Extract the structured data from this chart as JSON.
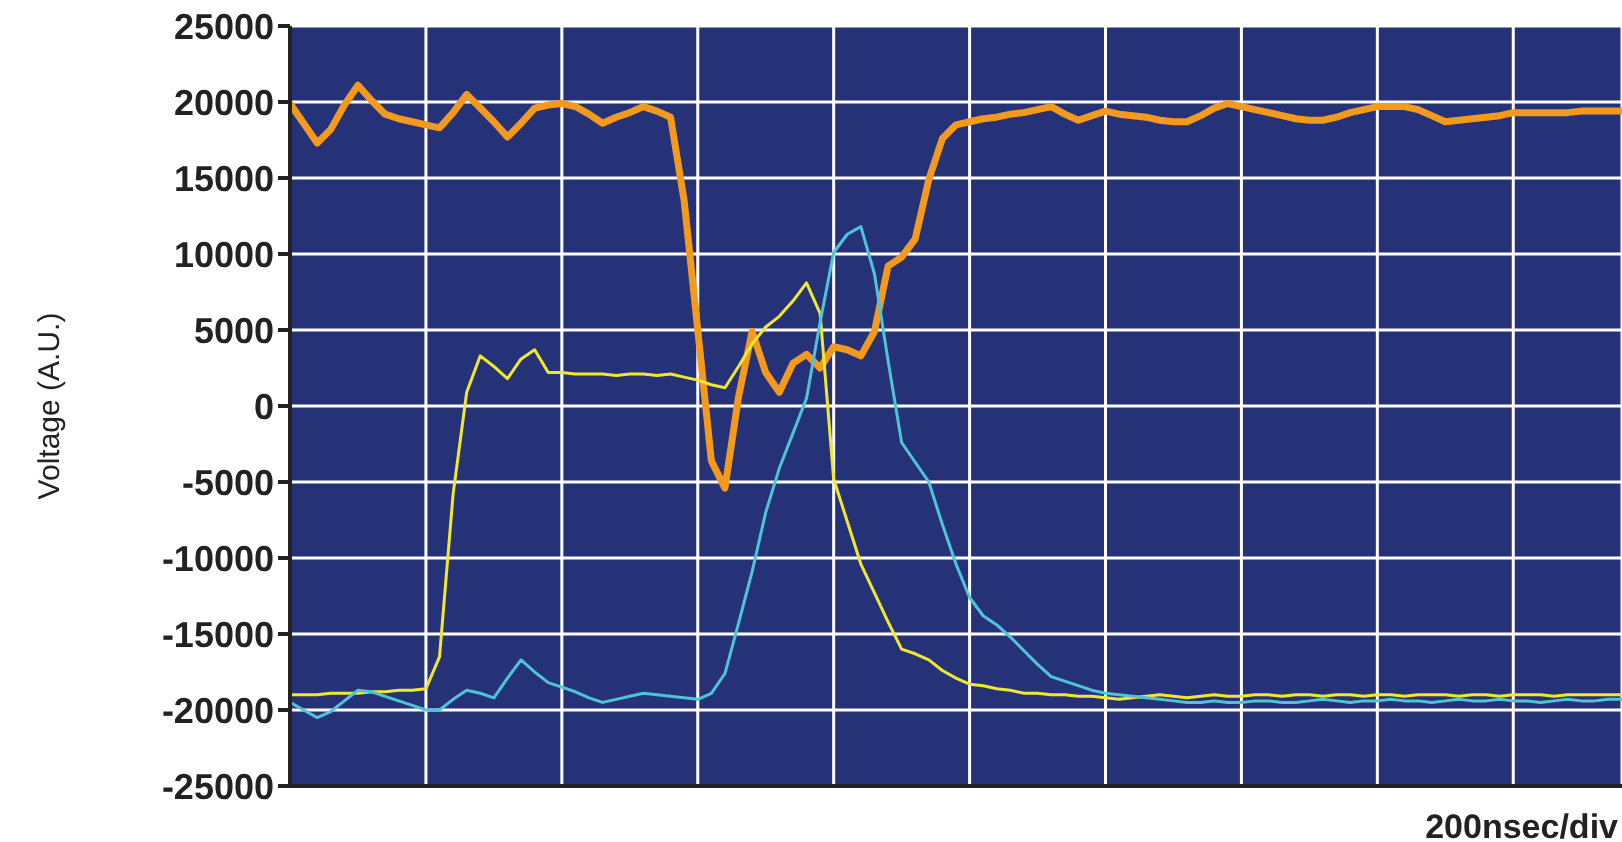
{
  "chart_data": {
    "type": "line",
    "xlabel": "200nsec/div",
    "ylabel": "Voltage (A.U.)",
    "ylim": [
      -25000,
      25000
    ],
    "categories": [
      null,
      null,
      null,
      null,
      null,
      null,
      null,
      null,
      null,
      null,
      null,
      null,
      null,
      null,
      null,
      null,
      null,
      null,
      null,
      null,
      null,
      null,
      null,
      null,
      null,
      null,
      null,
      null,
      null,
      null,
      null,
      null,
      null,
      null,
      null,
      null,
      null,
      null,
      null,
      null,
      null,
      null,
      null,
      null,
      null,
      null,
      null,
      null,
      null,
      null,
      null,
      null,
      null,
      null,
      null,
      null,
      null,
      null,
      null,
      null,
      null,
      null,
      null,
      null,
      null,
      null,
      null,
      null,
      null,
      null,
      null,
      null,
      null,
      null,
      null,
      null,
      null,
      null,
      null,
      null,
      null,
      null,
      null,
      null,
      null,
      null,
      null,
      null,
      null,
      null,
      null,
      null,
      null,
      null,
      null,
      null,
      null,
      null,
      null
    ],
    "yticks": [
      -25000,
      -20000,
      -15000,
      -10000,
      -5000,
      0,
      5000,
      10000,
      15000,
      20000,
      25000
    ],
    "grid": true,
    "tick_labels": "y",
    "series": [
      {
        "color": "#f39a1e",
        "values": [
          19900,
          18600,
          17300,
          18200,
          19800,
          21100,
          20100,
          19200,
          18900,
          18700,
          18500,
          18300,
          19300,
          20500,
          19600,
          18700,
          17700,
          18600,
          19600,
          19800,
          19900,
          19700,
          19200,
          18600,
          19000,
          19300,
          19700,
          19400,
          19000,
          13500,
          5000,
          -3600,
          -5400,
          600,
          4900,
          2200,
          900,
          2800,
          3400,
          2500,
          3900,
          3700,
          3300,
          4900,
          9200,
          9800,
          11000,
          14900,
          17600,
          18500,
          18700,
          18900,
          19000,
          19200,
          19300,
          19500,
          19700,
          19200,
          18800,
          19100,
          19400,
          19200,
          19100,
          19000,
          18800,
          18700,
          18700,
          19100,
          19600,
          19900,
          19700,
          19500,
          19300,
          19100,
          18900,
          18800,
          18800,
          19000,
          19300,
          19500,
          19700,
          19700,
          19700,
          19500,
          19100,
          18700,
          18800,
          18900,
          19000,
          19100,
          19300,
          19300,
          19300,
          19300,
          19300,
          19400,
          19400,
          19400,
          19400
        ]
      },
      {
        "color": "#f0e830",
        "values": [
          -19000,
          -19000,
          -19000,
          -18900,
          -18900,
          -18900,
          -18800,
          -18800,
          -18700,
          -18700,
          -18600,
          -16500,
          -5800,
          900,
          3300,
          2600,
          1800,
          3100,
          3700,
          2200,
          2200,
          2100,
          2100,
          2100,
          2000,
          2100,
          2100,
          2000,
          2100,
          1900,
          1700,
          1400,
          1200,
          2600,
          4100,
          5200,
          5900,
          6900,
          8100,
          6100,
          -4800,
          -7600,
          -10400,
          -12300,
          -14200,
          -16000,
          -16300,
          -16700,
          -17400,
          -17900,
          -18300,
          -18400,
          -18600,
          -18700,
          -18900,
          -18900,
          -19000,
          -19000,
          -19100,
          -19100,
          -19200,
          -19300,
          -19200,
          -19100,
          -19000,
          -19100,
          -19200,
          -19100,
          -19000,
          -19100,
          -19100,
          -19000,
          -19000,
          -19100,
          -19000,
          -19000,
          -19100,
          -19000,
          -19000,
          -19100,
          -19000,
          -19000,
          -19100,
          -19000,
          -19000,
          -19000,
          -19100,
          -19000,
          -19000,
          -19100,
          -19000,
          -19000,
          -19000,
          -19100,
          -19000,
          -19000,
          -19000,
          -19000,
          -19000
        ]
      },
      {
        "color": "#4fc3d8",
        "values": [
          -19500,
          -20000,
          -20500,
          -20100,
          -19400,
          -18700,
          -18800,
          -19100,
          -19400,
          -19700,
          -20000,
          -20000,
          -19300,
          -18700,
          -18900,
          -19200,
          -17900,
          -16700,
          -17500,
          -18200,
          -18500,
          -18800,
          -19200,
          -19500,
          -19300,
          -19100,
          -18900,
          -19000,
          -19100,
          -19200,
          -19300,
          -18900,
          -17600,
          -14300,
          -10900,
          -7000,
          -4100,
          -1800,
          500,
          5500,
          10100,
          11300,
          11800,
          8700,
          3000,
          -2400,
          -3700,
          -5000,
          -7800,
          -10400,
          -12600,
          -13800,
          -14400,
          -15200,
          -16100,
          -17000,
          -17800,
          -18100,
          -18400,
          -18700,
          -18900,
          -19000,
          -19100,
          -19200,
          -19300,
          -19400,
          -19500,
          -19500,
          -19400,
          -19500,
          -19500,
          -19400,
          -19400,
          -19500,
          -19500,
          -19400,
          -19300,
          -19400,
          -19500,
          -19400,
          -19400,
          -19300,
          -19400,
          -19400,
          -19500,
          -19400,
          -19300,
          -19400,
          -19400,
          -19300,
          -19400,
          -19400,
          -19500,
          -19400,
          -19300,
          -19400,
          -19400,
          -19300,
          -19300
        ]
      }
    ]
  }
}
